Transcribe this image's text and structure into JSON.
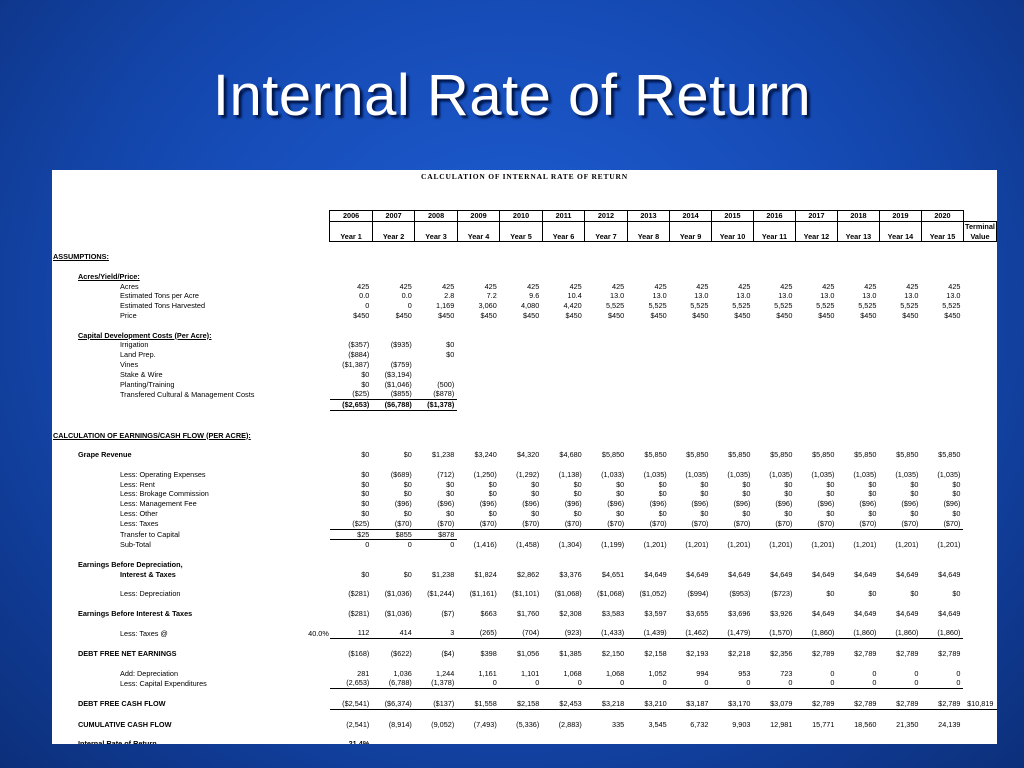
{
  "slide": {
    "title": "Internal Rate of Return"
  },
  "sheet": {
    "title": "CALCULATION OF INTERNAL RATE OF RETURN",
    "header_years": [
      "2006",
      "2007",
      "2008",
      "2009",
      "2010",
      "2011",
      "2012",
      "2013",
      "2014",
      "2015",
      "2016",
      "2017",
      "2018",
      "2019",
      "2020"
    ],
    "header_periods": [
      "Year 1",
      "Year 2",
      "Year 3",
      "Year 4",
      "Year 5",
      "Year 6",
      "Year 7",
      "Year 8",
      "Year 9",
      "Year 10",
      "Year 11",
      "Year 12",
      "Year 13",
      "Year 14",
      "Year 15"
    ],
    "terminal_label_1": "Terminal",
    "terminal_label_2": "Value",
    "rows": [
      {
        "label": "ASSUMPTIONS:",
        "style": "section"
      },
      {
        "spacer": true
      },
      {
        "label": "Acres/Yield/Price:",
        "style": "subsection"
      },
      {
        "label": "Acres",
        "indent": 2,
        "values": [
          "425",
          "425",
          "425",
          "425",
          "425",
          "425",
          "425",
          "425",
          "425",
          "425",
          "425",
          "425",
          "425",
          "425",
          "425"
        ]
      },
      {
        "label": "Estimated Tons per Acre",
        "indent": 2,
        "values": [
          "0.0",
          "0.0",
          "2.8",
          "7.2",
          "9.6",
          "10.4",
          "13.0",
          "13.0",
          "13.0",
          "13.0",
          "13.0",
          "13.0",
          "13.0",
          "13.0",
          "13.0"
        ]
      },
      {
        "label": "Estimated Tons Harvested",
        "indent": 2,
        "values": [
          "0",
          "0",
          "1,169",
          "3,060",
          "4,080",
          "4,420",
          "5,525",
          "5,525",
          "5,525",
          "5,525",
          "5,525",
          "5,525",
          "5,525",
          "5,525",
          "5,525"
        ]
      },
      {
        "label": "Price",
        "indent": 2,
        "values": [
          "$450",
          "$450",
          "$450",
          "$450",
          "$450",
          "$450",
          "$450",
          "$450",
          "$450",
          "$450",
          "$450",
          "$450",
          "$450",
          "$450",
          "$450"
        ]
      },
      {
        "spacer": true
      },
      {
        "label": "Capital Development Costs (Per Acre):",
        "style": "subsection"
      },
      {
        "label": "Irrigation",
        "indent": 2,
        "values": [
          "($357)",
          "($935)",
          "$0"
        ]
      },
      {
        "label": "Land Prep.",
        "indent": 2,
        "values": [
          "($884)",
          "",
          "$0"
        ]
      },
      {
        "label": "Vines",
        "indent": 2,
        "values": [
          "($1,387)",
          "($759)"
        ]
      },
      {
        "label": "Stake & Wire",
        "indent": 2,
        "values": [
          "$0",
          "($3,194)"
        ]
      },
      {
        "label": "Planting/Training",
        "indent": 2,
        "values": [
          "$0",
          "($1,046)",
          "(500)"
        ]
      },
      {
        "label": "Transfered Cultural & Management Costs",
        "indent": 2,
        "values": [
          "($25)",
          "($855)",
          "($878)"
        ],
        "underline": true
      },
      {
        "label": "",
        "indent": 2,
        "values": [
          "($2,653)",
          "($6,788)",
          "($1,378)"
        ],
        "bold": true,
        "underline": true
      },
      {
        "spacer": true
      },
      {
        "spacer": true
      },
      {
        "label": "CALCULATION OF EARNINGS/CASH FLOW  (PER ACRE):",
        "style": "section"
      },
      {
        "spacer": true
      },
      {
        "label": "Grape Revenue",
        "indent": 1,
        "bold": true,
        "values": [
          "$0",
          "$0",
          "$1,238",
          "$3,240",
          "$4,320",
          "$4,680",
          "$5,850",
          "$5,850",
          "$5,850",
          "$5,850",
          "$5,850",
          "$5,850",
          "$5,850",
          "$5,850",
          "$5,850"
        ]
      },
      {
        "spacer": true
      },
      {
        "label": "Less:  Operating Expenses",
        "indent": 2,
        "values": [
          "$0",
          "($689)",
          "(712)",
          "(1,250)",
          "(1,292)",
          "(1,138)",
          "(1,033)",
          "(1,035)",
          "(1,035)",
          "(1,035)",
          "(1,035)",
          "(1,035)",
          "(1,035)",
          "(1,035)",
          "(1,035)"
        ]
      },
      {
        "label": "Less:  Rent",
        "indent": 2,
        "values": [
          "$0",
          "$0",
          "$0",
          "$0",
          "$0",
          "$0",
          "$0",
          "$0",
          "$0",
          "$0",
          "$0",
          "$0",
          "$0",
          "$0",
          "$0"
        ]
      },
      {
        "label": "Less:  Brokage Commission",
        "indent": 2,
        "values": [
          "$0",
          "$0",
          "$0",
          "$0",
          "$0",
          "$0",
          "$0",
          "$0",
          "$0",
          "$0",
          "$0",
          "$0",
          "$0",
          "$0",
          "$0"
        ]
      },
      {
        "label": "Less:  Management Fee",
        "indent": 2,
        "values": [
          "$0",
          "($96)",
          "($96)",
          "($96)",
          "($96)",
          "($96)",
          "($96)",
          "($96)",
          "($96)",
          "($96)",
          "($96)",
          "($96)",
          "($96)",
          "($96)",
          "($96)"
        ]
      },
      {
        "label": "Less:  Other",
        "indent": 2,
        "values": [
          "$0",
          "$0",
          "$0",
          "$0",
          "$0",
          "$0",
          "$0",
          "$0",
          "$0",
          "$0",
          "$0",
          "$0",
          "$0",
          "$0",
          "$0"
        ]
      },
      {
        "label": "Less:  Taxes",
        "indent": 2,
        "values": [
          "($25)",
          "($70)",
          "($70)",
          "($70)",
          "($70)",
          "($70)",
          "($70)",
          "($70)",
          "($70)",
          "($70)",
          "($70)",
          "($70)",
          "($70)",
          "($70)",
          "($70)"
        ],
        "underline": true
      },
      {
        "label": "Transfer to Capital",
        "indent": 2,
        "values": [
          "$25",
          "$855",
          "$878"
        ],
        "underline": true
      },
      {
        "label": "Sub-Total",
        "indent": 2,
        "values": [
          "0",
          "0",
          "0",
          "(1,416)",
          "(1,458)",
          "(1,304)",
          "(1,199)",
          "(1,201)",
          "(1,201)",
          "(1,201)",
          "(1,201)",
          "(1,201)",
          "(1,201)",
          "(1,201)",
          "(1,201)"
        ]
      },
      {
        "spacer": true
      },
      {
        "label": "Earnings Before Depreciation,",
        "indent": 1,
        "bold": true
      },
      {
        "label": "Interest & Taxes",
        "indent": 2,
        "bold": true,
        "values": [
          "$0",
          "$0",
          "$1,238",
          "$1,824",
          "$2,862",
          "$3,376",
          "$4,651",
          "$4,649",
          "$4,649",
          "$4,649",
          "$4,649",
          "$4,649",
          "$4,649",
          "$4,649",
          "$4,649"
        ]
      },
      {
        "spacer": true
      },
      {
        "label": "Less:  Depreciation",
        "indent": 2,
        "values": [
          "($281)",
          "($1,036)",
          "($1,244)",
          "($1,161)",
          "($1,101)",
          "($1,068)",
          "($1,068)",
          "($1,052)",
          "($994)",
          "($953)",
          "($723)",
          "$0",
          "$0",
          "$0",
          "$0"
        ]
      },
      {
        "spacer": true
      },
      {
        "label": "Earnings Before Interest & Taxes",
        "indent": 1,
        "bold": true,
        "values": [
          "($281)",
          "($1,036)",
          "($7)",
          "$663",
          "$1,760",
          "$2,308",
          "$3,583",
          "$3,597",
          "$3,655",
          "$3,696",
          "$3,926",
          "$4,649",
          "$4,649",
          "$4,649",
          "$4,649"
        ]
      },
      {
        "spacer": true
      },
      {
        "label": "Less:  Taxes @",
        "rate": "40.0%",
        "indent": 2,
        "values": [
          "112",
          "414",
          "3",
          "(265)",
          "(704)",
          "(923)",
          "(1,433)",
          "(1,439)",
          "(1,462)",
          "(1,479)",
          "(1,570)",
          "(1,860)",
          "(1,860)",
          "(1,860)",
          "(1,860)"
        ],
        "underline": true
      },
      {
        "spacer": true
      },
      {
        "label": "DEBT FREE NET EARNINGS",
        "indent": 1,
        "bold": true,
        "values": [
          "($168)",
          "($622)",
          "($4)",
          "$398",
          "$1,056",
          "$1,385",
          "$2,150",
          "$2,158",
          "$2,193",
          "$2,218",
          "$2,356",
          "$2,789",
          "$2,789",
          "$2,789",
          "$2,789"
        ]
      },
      {
        "spacer": true
      },
      {
        "label": "Add:  Depreciation",
        "indent": 2,
        "values": [
          "281",
          "1,036",
          "1,244",
          "1,161",
          "1,101",
          "1,068",
          "1,068",
          "1,052",
          "994",
          "953",
          "723",
          "0",
          "0",
          "0",
          "0"
        ]
      },
      {
        "label": "Less: Capital Expenditures",
        "indent": 2,
        "values": [
          "(2,653)",
          "(6,788)",
          "(1,378)",
          "0",
          "0",
          "0",
          "0",
          "0",
          "0",
          "0",
          "0",
          "0",
          "0",
          "0",
          "0"
        ],
        "underline": true
      },
      {
        "spacer": true
      },
      {
        "label": "DEBT FREE CASH FLOW",
        "indent": 1,
        "bold": true,
        "values": [
          "($2,541)",
          "($6,374)",
          "($137)",
          "$1,558",
          "$2,158",
          "$2,453",
          "$3,218",
          "$3,210",
          "$3,187",
          "$3,170",
          "$3,079",
          "$2,789",
          "$2,789",
          "$2,789",
          "$2,789"
        ],
        "terminal": "$10,819",
        "underline": true
      },
      {
        "spacer": true
      },
      {
        "label": "CUMULATIVE CASH FLOW",
        "indent": 1,
        "bold": true,
        "values": [
          "(2,541)",
          "(8,914)",
          "(9,052)",
          "(7,493)",
          "(5,336)",
          "(2,883)",
          "335",
          "3,545",
          "6,732",
          "9,903",
          "12,981",
          "15,771",
          "18,560",
          "21,350",
          "24,139"
        ]
      },
      {
        "spacer": true
      },
      {
        "label": "Internal Rate of Return",
        "indent": 1,
        "bold": true,
        "values": [
          "21.4%"
        ],
        "bold_values": true
      }
    ]
  }
}
